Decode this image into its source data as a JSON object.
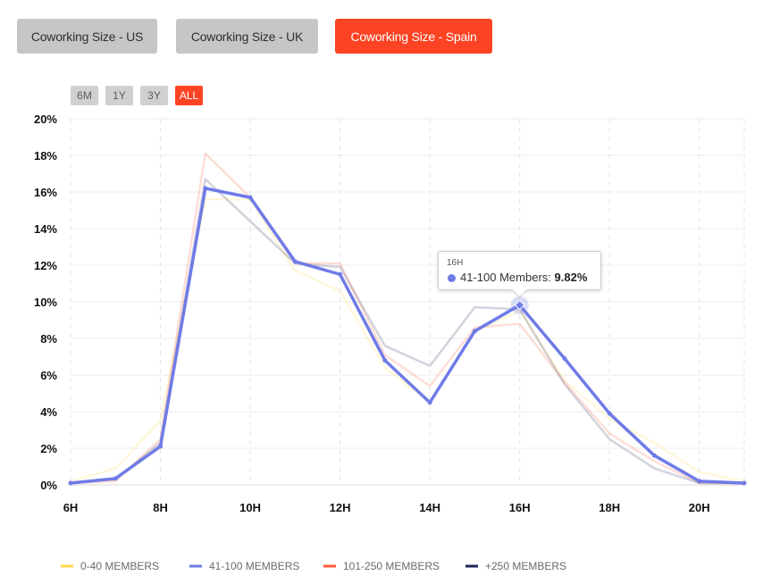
{
  "tabs": [
    {
      "label": "Coworking Size - US",
      "active": false
    },
    {
      "label": "Coworking Size - UK",
      "active": false
    },
    {
      "label": "Coworking Size - Spain",
      "active": true
    }
  ],
  "ranges": [
    {
      "label": "6M",
      "active": false
    },
    {
      "label": "1Y",
      "active": false
    },
    {
      "label": "3Y",
      "active": false
    },
    {
      "label": "ALL",
      "active": true
    }
  ],
  "colors": {
    "accent": "#fc4323",
    "s0_40": "#ffd84a",
    "s41_100": "#6f7be6",
    "s101_250": "#ff5a3c",
    "s250": "#1f2455"
  },
  "tooltip": {
    "header": "16H",
    "series": "41-100 Members:",
    "value": "9.82%"
  },
  "chart_data": {
    "type": "line",
    "x": [
      6,
      7,
      8,
      9,
      10,
      11,
      12,
      13,
      14,
      15,
      16,
      17,
      18,
      19,
      20,
      21
    ],
    "xticks": [
      6,
      8,
      10,
      12,
      14,
      16,
      18,
      20
    ],
    "xtick_labels": [
      "6H",
      "8H",
      "10H",
      "12H",
      "14H",
      "16H",
      "18H",
      "20H"
    ],
    "yticks": [
      0,
      2,
      4,
      6,
      8,
      10,
      12,
      14,
      16,
      18,
      20
    ],
    "ytick_labels": [
      "0%",
      "2%",
      "4%",
      "6%",
      "8%",
      "10%",
      "12%",
      "14%",
      "16%",
      "18%",
      "20%"
    ],
    "xlim": [
      6,
      21
    ],
    "ylim": [
      0,
      20
    ],
    "grid": true,
    "legend_position": "bottom-left",
    "highlighted_series": "41-100 MEMBERS",
    "highlighted_point": {
      "x": 16,
      "y": 9.82
    },
    "series": [
      {
        "name": "0-40 MEMBERS",
        "color": "#ffd84a",
        "values": [
          0.2,
          0.9,
          3.5,
          15.6,
          15.6,
          11.7,
          10.6,
          6.4,
          4.5,
          8.4,
          9.5,
          5.7,
          3.6,
          2.3,
          0.7,
          0.2
        ]
      },
      {
        "name": "41-100 MEMBERS",
        "color": "#6f7be6",
        "values": [
          0.1,
          0.35,
          2.1,
          16.2,
          15.7,
          12.2,
          11.5,
          6.8,
          4.5,
          8.4,
          9.82,
          6.9,
          3.9,
          1.6,
          0.2,
          0.1
        ]
      },
      {
        "name": "101-250 MEMBERS",
        "color": "#ff5a3c",
        "values": [
          0.1,
          0.2,
          2.5,
          18.1,
          15.7,
          12.1,
          12.1,
          7.1,
          5.4,
          8.6,
          8.8,
          5.6,
          2.8,
          1.3,
          0.1,
          0.1
        ]
      },
      {
        "name": "+250 MEMBERS",
        "color": "#1f2455",
        "values": [
          0.1,
          0.3,
          2.3,
          16.7,
          14.4,
          12.1,
          11.9,
          7.6,
          6.5,
          9.7,
          9.6,
          5.5,
          2.5,
          0.9,
          0.1,
          0.1
        ]
      }
    ]
  }
}
